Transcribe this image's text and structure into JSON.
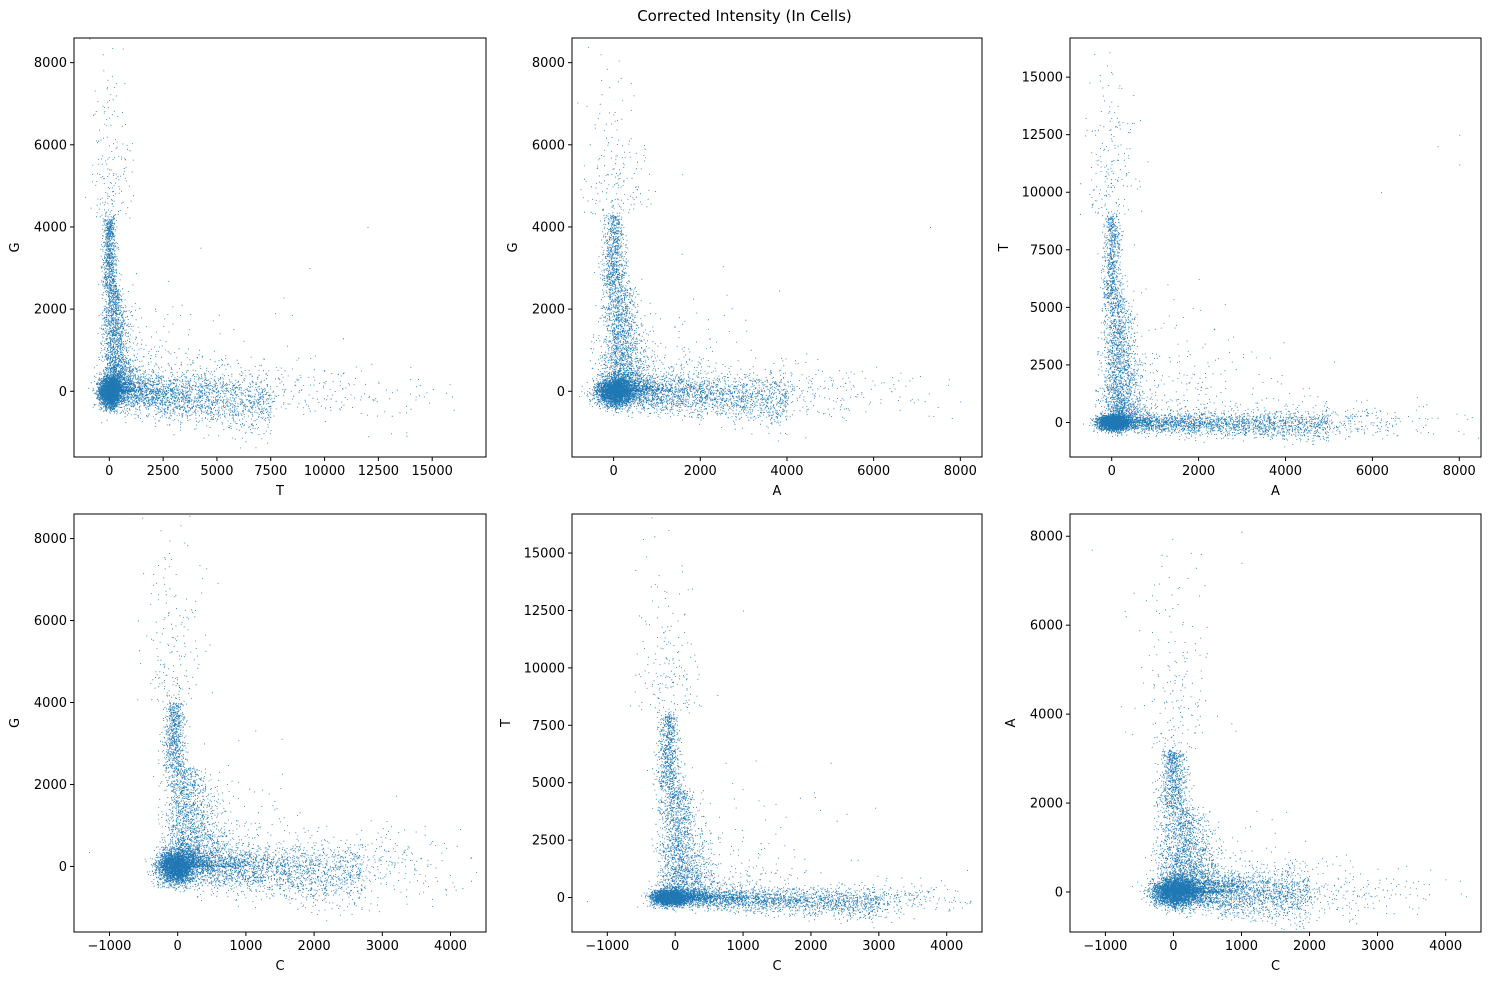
{
  "figure": {
    "title": "Corrected Intensity (In Cells)"
  },
  "chart_data": [
    {
      "type": "scatter",
      "title": "",
      "xlabel": "T",
      "ylabel": "G",
      "xlim": [
        -1640,
        17500
      ],
      "ylim": [
        -1600,
        8600
      ],
      "xticks": [
        0,
        2500,
        5000,
        7500,
        10000,
        12500,
        15000
      ],
      "yticks": [
        0,
        2000,
        4000,
        6000,
        8000
      ],
      "grid": false,
      "color": "#1f77b4",
      "structure": {
        "arm_vertical": {
          "x_center": 0,
          "x_spread": 300,
          "y_range": [
            0,
            4200
          ],
          "dense_bulge": [
            0,
            1000
          ]
        },
        "arm_horizontal": {
          "x_range": [
            0,
            7500
          ],
          "y_center": 0,
          "y_slope_per_unit": -0.04,
          "y_spread": 200
        },
        "x_max": 16000,
        "y_max": 8200
      },
      "outliers": [
        [
          -300,
          8200
        ],
        [
          -100,
          7400
        ],
        [
          700,
          7500
        ],
        [
          12000,
          4000
        ],
        [
          16000,
          -450
        ],
        [
          13800,
          -1000
        ],
        [
          9300,
          3000
        ],
        [
          7700,
          1900
        ]
      ]
    },
    {
      "type": "scatter",
      "title": "",
      "xlabel": "A",
      "ylabel": "G",
      "xlim": [
        -960,
        8500
      ],
      "ylim": [
        -1600,
        8600
      ],
      "xticks": [
        0,
        2000,
        4000,
        6000,
        8000
      ],
      "yticks": [
        0,
        2000,
        4000,
        6000,
        8000
      ],
      "grid": false,
      "color": "#1f77b4",
      "structure": {
        "arm_vertical": {
          "x_center": 0,
          "x_spread": 250,
          "y_range": [
            0,
            4300
          ],
          "dense_bulge": [
            0,
            600
          ]
        },
        "arm_horizontal": {
          "x_range": [
            0,
            4000
          ],
          "y_center": 0,
          "y_slope_per_unit": -0.05,
          "y_spread": 180
        },
        "x_max": 8000,
        "y_max": 8200
      },
      "outliers": [
        [
          -300,
          8200
        ],
        [
          -100,
          7400
        ],
        [
          400,
          7500
        ],
        [
          7300,
          4000
        ],
        [
          8000,
          -250
        ],
        [
          5900,
          -300
        ],
        [
          6600,
          -450
        ]
      ]
    },
    {
      "type": "scatter",
      "title": "",
      "xlabel": "A",
      "ylabel": "T",
      "xlim": [
        -960,
        8500
      ],
      "ylim": [
        -1500,
        16700
      ],
      "xticks": [
        0,
        2000,
        4000,
        6000,
        8000
      ],
      "yticks": [
        0,
        2500,
        5000,
        7500,
        10000,
        12500,
        15000
      ],
      "grid": false,
      "color": "#1f77b4",
      "structure": {
        "arm_vertical": {
          "x_center": 0,
          "x_spread": 200,
          "y_range": [
            0,
            9000
          ],
          "dense_bulge": [
            0,
            600
          ]
        },
        "arm_horizontal": {
          "x_range": [
            0,
            5000
          ],
          "y_center": 0,
          "y_slope_per_unit": -0.02,
          "y_spread": 180
        },
        "x_max": 8000,
        "y_max": 16000
      },
      "outliers": [
        [
          -400,
          16000
        ],
        [
          -200,
          14200
        ],
        [
          7500,
          12000
        ],
        [
          8000,
          12500
        ],
        [
          8000,
          11200
        ],
        [
          6200,
          10000
        ],
        [
          7000,
          -300
        ]
      ]
    },
    {
      "type": "scatter",
      "title": "",
      "xlabel": "C",
      "ylabel": "G",
      "xlim": [
        -1520,
        4520
      ],
      "ylim": [
        -1600,
        8600
      ],
      "xticks": [
        -1000,
        0,
        1000,
        2000,
        3000,
        4000
      ],
      "yticks": [
        0,
        2000,
        4000,
        6000,
        8000
      ],
      "grid": false,
      "color": "#1f77b4",
      "structure": {
        "arm_vertical": {
          "x_center": -50,
          "x_spread": 150,
          "y_range": [
            0,
            4000
          ],
          "dense_bulge": [
            -300,
            800
          ]
        },
        "arm_horizontal": {
          "x_range": [
            0,
            2700
          ],
          "y_center": 0,
          "y_slope_per_unit": -0.07,
          "y_spread": 220
        },
        "x_max": 4300,
        "y_max": 8200
      },
      "outliers": [
        [
          -250,
          8200
        ],
        [
          -100,
          7500
        ],
        [
          4300,
          -350
        ],
        [
          -1300,
          350
        ],
        [
          3800,
          -350
        ],
        [
          3600,
          -400
        ]
      ]
    },
    {
      "type": "scatter",
      "title": "",
      "xlabel": "C",
      "ylabel": "T",
      "xlim": [
        -1520,
        4520
      ],
      "ylim": [
        -1500,
        16700
      ],
      "xticks": [
        -1000,
        0,
        1000,
        2000,
        3000,
        4000
      ],
      "yticks": [
        0,
        2500,
        5000,
        7500,
        10000,
        12500,
        15000
      ],
      "grid": false,
      "color": "#1f77b4",
      "structure": {
        "arm_vertical": {
          "x_center": -100,
          "x_spread": 150,
          "y_range": [
            0,
            8000
          ],
          "dense_bulge": [
            -200,
            600
          ]
        },
        "arm_horizontal": {
          "x_range": [
            0,
            3000
          ],
          "y_center": 0,
          "y_slope_per_unit": -0.08,
          "y_spread": 180
        },
        "x_max": 4300,
        "y_max": 16000
      },
      "outliers": [
        [
          -100,
          16000
        ],
        [
          100,
          14200
        ],
        [
          -500,
          12200
        ],
        [
          4300,
          1200
        ],
        [
          3600,
          -300
        ],
        [
          -1300,
          -150
        ],
        [
          1000,
          12500
        ]
      ]
    },
    {
      "type": "scatter",
      "title": "",
      "xlabel": "C",
      "ylabel": "A",
      "xlim": [
        -1520,
        4520
      ],
      "ylim": [
        -900,
        8500
      ],
      "xticks": [
        -1000,
        0,
        1000,
        2000,
        3000,
        4000
      ],
      "yticks": [
        0,
        2000,
        4000,
        6000,
        8000
      ],
      "grid": false,
      "color": "#1f77b4",
      "structure": {
        "arm_vertical": {
          "x_center": 0,
          "x_spread": 200,
          "y_range": [
            0,
            3200
          ],
          "dense_bulge": [
            -200,
            600
          ]
        },
        "arm_horizontal": {
          "x_range": [
            0,
            2000
          ],
          "y_center": 0,
          "y_slope_per_unit": -0.05,
          "y_spread": 170
        },
        "x_max": 4300,
        "y_max": 8100
      },
      "outliers": [
        [
          -1200,
          7700
        ],
        [
          1000,
          8100
        ],
        [
          1000,
          7400
        ],
        [
          4300,
          -100
        ],
        [
          3600,
          -350
        ],
        [
          -700,
          6200
        ]
      ]
    }
  ]
}
